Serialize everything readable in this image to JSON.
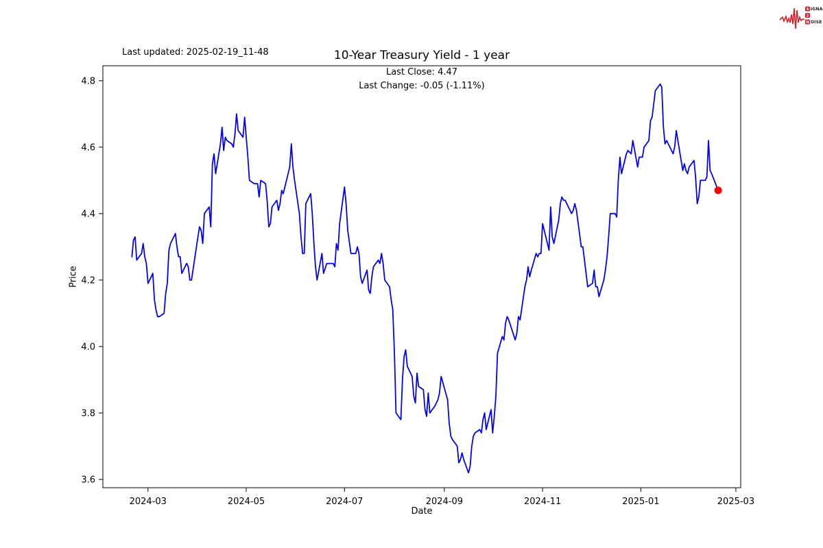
{
  "header": {
    "last_updated": "Last updated: 2025-02-19_11-48",
    "title": "10-Year Treasury Yield - 1 year",
    "subtitle_line1": "Last Close: 4.47",
    "subtitle_line2": "Last Change: -0.05 (-1.11%)"
  },
  "logo": {
    "name": "Signal 2 Noise",
    "color": "#d62027",
    "rows": [
      {
        "badge": "S",
        "rest": "IGNAL"
      },
      {
        "badge": "2",
        "rest": ""
      },
      {
        "badge": "N",
        "rest": "OISE"
      }
    ]
  },
  "chart_data": {
    "type": "line",
    "title": "10-Year Treasury Yield - 1 year",
    "xlabel": "Date",
    "ylabel": "Price",
    "grid": false,
    "legend": "none",
    "line_color": "#0000ff",
    "marker_color": "#ff0000",
    "last_close": 4.47,
    "last_change": -0.05,
    "last_change_pct": "-1.11%",
    "x_domain": [
      "2024-02-02",
      "2025-03-04"
    ],
    "y_domain": [
      3.575,
      4.845
    ],
    "x_ticks": [
      {
        "label": "2024-03",
        "date": "2024-03-01"
      },
      {
        "label": "2024-05",
        "date": "2024-05-01"
      },
      {
        "label": "2024-07",
        "date": "2024-07-01"
      },
      {
        "label": "2024-09",
        "date": "2024-09-01"
      },
      {
        "label": "2024-11",
        "date": "2024-11-01"
      },
      {
        "label": "2025-01",
        "date": "2025-01-01"
      },
      {
        "label": "2025-03",
        "date": "2025-03-01"
      }
    ],
    "y_ticks": [
      {
        "label": "4.8",
        "value": 4.8
      },
      {
        "label": "4.6",
        "value": 4.6
      },
      {
        "label": "4.4",
        "value": 4.4
      },
      {
        "label": "4.2",
        "value": 4.2
      },
      {
        "label": "4.0",
        "value": 4.0
      },
      {
        "label": "3.8",
        "value": 3.8
      },
      {
        "label": "3.6",
        "value": 3.6
      }
    ],
    "series": [
      {
        "name": "10-Year Treasury Yield",
        "points": [
          [
            "2024-02-20",
            4.27
          ],
          [
            "2024-02-21",
            4.32
          ],
          [
            "2024-02-22",
            4.33
          ],
          [
            "2024-02-23",
            4.26
          ],
          [
            "2024-02-26",
            4.28
          ],
          [
            "2024-02-27",
            4.31
          ],
          [
            "2024-02-28",
            4.27
          ],
          [
            "2024-02-29",
            4.25
          ],
          [
            "2024-03-01",
            4.19
          ],
          [
            "2024-03-04",
            4.22
          ],
          [
            "2024-03-05",
            4.14
          ],
          [
            "2024-03-06",
            4.11
          ],
          [
            "2024-03-07",
            4.09
          ],
          [
            "2024-03-08",
            4.09
          ],
          [
            "2024-03-11",
            4.1
          ],
          [
            "2024-03-12",
            4.16
          ],
          [
            "2024-03-13",
            4.19
          ],
          [
            "2024-03-14",
            4.29
          ],
          [
            "2024-03-15",
            4.31
          ],
          [
            "2024-03-18",
            4.34
          ],
          [
            "2024-03-19",
            4.3
          ],
          [
            "2024-03-20",
            4.27
          ],
          [
            "2024-03-21",
            4.27
          ],
          [
            "2024-03-22",
            4.22
          ],
          [
            "2024-03-25",
            4.25
          ],
          [
            "2024-03-26",
            4.24
          ],
          [
            "2024-03-27",
            4.2
          ],
          [
            "2024-03-28",
            4.2
          ],
          [
            "2024-04-01",
            4.33
          ],
          [
            "2024-04-02",
            4.36
          ],
          [
            "2024-04-03",
            4.35
          ],
          [
            "2024-04-04",
            4.31
          ],
          [
            "2024-04-05",
            4.4
          ],
          [
            "2024-04-08",
            4.42
          ],
          [
            "2024-04-09",
            4.36
          ],
          [
            "2024-04-10",
            4.55
          ],
          [
            "2024-04-11",
            4.58
          ],
          [
            "2024-04-12",
            4.52
          ],
          [
            "2024-04-15",
            4.61
          ],
          [
            "2024-04-16",
            4.66
          ],
          [
            "2024-04-17",
            4.59
          ],
          [
            "2024-04-18",
            4.63
          ],
          [
            "2024-04-19",
            4.62
          ],
          [
            "2024-04-22",
            4.61
          ],
          [
            "2024-04-23",
            4.6
          ],
          [
            "2024-04-24",
            4.64
          ],
          [
            "2024-04-25",
            4.7
          ],
          [
            "2024-04-26",
            4.65
          ],
          [
            "2024-04-29",
            4.63
          ],
          [
            "2024-04-30",
            4.69
          ],
          [
            "2024-05-01",
            4.63
          ],
          [
            "2024-05-02",
            4.57
          ],
          [
            "2024-05-03",
            4.5
          ],
          [
            "2024-05-06",
            4.49
          ],
          [
            "2024-05-07",
            4.49
          ],
          [
            "2024-05-08",
            4.49
          ],
          [
            "2024-05-09",
            4.45
          ],
          [
            "2024-05-10",
            4.5
          ],
          [
            "2024-05-13",
            4.49
          ],
          [
            "2024-05-14",
            4.44
          ],
          [
            "2024-05-15",
            4.36
          ],
          [
            "2024-05-16",
            4.37
          ],
          [
            "2024-05-17",
            4.42
          ],
          [
            "2024-05-20",
            4.44
          ],
          [
            "2024-05-21",
            4.41
          ],
          [
            "2024-05-22",
            4.43
          ],
          [
            "2024-05-23",
            4.47
          ],
          [
            "2024-05-24",
            4.46
          ],
          [
            "2024-05-28",
            4.54
          ],
          [
            "2024-05-29",
            4.61
          ],
          [
            "2024-05-30",
            4.54
          ],
          [
            "2024-05-31",
            4.5
          ],
          [
            "2024-06-03",
            4.4
          ],
          [
            "2024-06-04",
            4.33
          ],
          [
            "2024-06-05",
            4.28
          ],
          [
            "2024-06-06",
            4.28
          ],
          [
            "2024-06-07",
            4.43
          ],
          [
            "2024-06-10",
            4.46
          ],
          [
            "2024-06-11",
            4.4
          ],
          [
            "2024-06-12",
            4.31
          ],
          [
            "2024-06-13",
            4.24
          ],
          [
            "2024-06-14",
            4.2
          ],
          [
            "2024-06-17",
            4.28
          ],
          [
            "2024-06-18",
            4.22
          ],
          [
            "2024-06-20",
            4.25
          ],
          [
            "2024-06-21",
            4.25
          ],
          [
            "2024-06-24",
            4.25
          ],
          [
            "2024-06-25",
            4.24
          ],
          [
            "2024-06-26",
            4.31
          ],
          [
            "2024-06-27",
            4.29
          ],
          [
            "2024-06-28",
            4.37
          ],
          [
            "2024-07-01",
            4.48
          ],
          [
            "2024-07-02",
            4.43
          ],
          [
            "2024-07-03",
            4.35
          ],
          [
            "2024-07-05",
            4.28
          ],
          [
            "2024-07-08",
            4.28
          ],
          [
            "2024-07-09",
            4.3
          ],
          [
            "2024-07-10",
            4.28
          ],
          [
            "2024-07-11",
            4.21
          ],
          [
            "2024-07-12",
            4.19
          ],
          [
            "2024-07-15",
            4.23
          ],
          [
            "2024-07-16",
            4.17
          ],
          [
            "2024-07-17",
            4.16
          ],
          [
            "2024-07-18",
            4.21
          ],
          [
            "2024-07-19",
            4.24
          ],
          [
            "2024-07-22",
            4.26
          ],
          [
            "2024-07-23",
            4.25
          ],
          [
            "2024-07-24",
            4.28
          ],
          [
            "2024-07-25",
            4.25
          ],
          [
            "2024-07-26",
            4.2
          ],
          [
            "2024-07-29",
            4.18
          ],
          [
            "2024-07-30",
            4.14
          ],
          [
            "2024-07-31",
            4.11
          ],
          [
            "2024-08-01",
            3.98
          ],
          [
            "2024-08-02",
            3.8
          ],
          [
            "2024-08-05",
            3.78
          ],
          [
            "2024-08-06",
            3.9
          ],
          [
            "2024-08-07",
            3.97
          ],
          [
            "2024-08-08",
            3.99
          ],
          [
            "2024-08-09",
            3.94
          ],
          [
            "2024-08-12",
            3.91
          ],
          [
            "2024-08-13",
            3.85
          ],
          [
            "2024-08-14",
            3.83
          ],
          [
            "2024-08-15",
            3.92
          ],
          [
            "2024-08-16",
            3.88
          ],
          [
            "2024-08-19",
            3.87
          ],
          [
            "2024-08-20",
            3.81
          ],
          [
            "2024-08-21",
            3.79
          ],
          [
            "2024-08-22",
            3.86
          ],
          [
            "2024-08-23",
            3.8
          ],
          [
            "2024-08-26",
            3.82
          ],
          [
            "2024-08-27",
            3.83
          ],
          [
            "2024-08-28",
            3.84
          ],
          [
            "2024-08-29",
            3.86
          ],
          [
            "2024-08-30",
            3.91
          ],
          [
            "2024-09-03",
            3.84
          ],
          [
            "2024-09-04",
            3.77
          ],
          [
            "2024-09-05",
            3.73
          ],
          [
            "2024-09-06",
            3.72
          ],
          [
            "2024-09-09",
            3.7
          ],
          [
            "2024-09-10",
            3.65
          ],
          [
            "2024-09-11",
            3.66
          ],
          [
            "2024-09-12",
            3.68
          ],
          [
            "2024-09-13",
            3.66
          ],
          [
            "2024-09-16",
            3.62
          ],
          [
            "2024-09-17",
            3.64
          ],
          [
            "2024-09-18",
            3.7
          ],
          [
            "2024-09-19",
            3.73
          ],
          [
            "2024-09-20",
            3.74
          ],
          [
            "2024-09-23",
            3.75
          ],
          [
            "2024-09-24",
            3.74
          ],
          [
            "2024-09-25",
            3.78
          ],
          [
            "2024-09-26",
            3.8
          ],
          [
            "2024-09-27",
            3.75
          ],
          [
            "2024-09-30",
            3.81
          ],
          [
            "2024-10-01",
            3.74
          ],
          [
            "2024-10-02",
            3.79
          ],
          [
            "2024-10-03",
            3.85
          ],
          [
            "2024-10-04",
            3.98
          ],
          [
            "2024-10-07",
            4.03
          ],
          [
            "2024-10-08",
            4.02
          ],
          [
            "2024-10-09",
            4.07
          ],
          [
            "2024-10-10",
            4.09
          ],
          [
            "2024-10-11",
            4.08
          ],
          [
            "2024-10-15",
            4.02
          ],
          [
            "2024-10-16",
            4.04
          ],
          [
            "2024-10-17",
            4.09
          ],
          [
            "2024-10-18",
            4.08
          ],
          [
            "2024-10-21",
            4.18
          ],
          [
            "2024-10-22",
            4.2
          ],
          [
            "2024-10-23",
            4.24
          ],
          [
            "2024-10-24",
            4.21
          ],
          [
            "2024-10-25",
            4.23
          ],
          [
            "2024-10-28",
            4.28
          ],
          [
            "2024-10-29",
            4.27
          ],
          [
            "2024-10-30",
            4.28
          ],
          [
            "2024-10-31",
            4.28
          ],
          [
            "2024-11-01",
            4.37
          ],
          [
            "2024-11-04",
            4.31
          ],
          [
            "2024-11-05",
            4.29
          ],
          [
            "2024-11-06",
            4.42
          ],
          [
            "2024-11-07",
            4.33
          ],
          [
            "2024-11-08",
            4.31
          ],
          [
            "2024-11-11",
            4.38
          ],
          [
            "2024-11-12",
            4.43
          ],
          [
            "2024-11-13",
            4.45
          ],
          [
            "2024-11-14",
            4.44
          ],
          [
            "2024-11-15",
            4.44
          ],
          [
            "2024-11-18",
            4.41
          ],
          [
            "2024-11-19",
            4.4
          ],
          [
            "2024-11-20",
            4.41
          ],
          [
            "2024-11-21",
            4.43
          ],
          [
            "2024-11-22",
            4.41
          ],
          [
            "2024-11-25",
            4.3
          ],
          [
            "2024-11-26",
            4.3
          ],
          [
            "2024-11-27",
            4.26
          ],
          [
            "2024-11-29",
            4.18
          ],
          [
            "2024-12-02",
            4.19
          ],
          [
            "2024-12-03",
            4.23
          ],
          [
            "2024-12-04",
            4.18
          ],
          [
            "2024-12-05",
            4.18
          ],
          [
            "2024-12-06",
            4.15
          ],
          [
            "2024-12-09",
            4.2
          ],
          [
            "2024-12-10",
            4.23
          ],
          [
            "2024-12-11",
            4.27
          ],
          [
            "2024-12-12",
            4.33
          ],
          [
            "2024-12-13",
            4.4
          ],
          [
            "2024-12-16",
            4.4
          ],
          [
            "2024-12-17",
            4.39
          ],
          [
            "2024-12-18",
            4.5
          ],
          [
            "2024-12-19",
            4.57
          ],
          [
            "2024-12-20",
            4.52
          ],
          [
            "2024-12-23",
            4.58
          ],
          [
            "2024-12-24",
            4.59
          ],
          [
            "2024-12-26",
            4.58
          ],
          [
            "2024-12-27",
            4.62
          ],
          [
            "2024-12-30",
            4.54
          ],
          [
            "2024-12-31",
            4.57
          ],
          [
            "2025-01-02",
            4.57
          ],
          [
            "2025-01-03",
            4.6
          ],
          [
            "2025-01-06",
            4.62
          ],
          [
            "2025-01-07",
            4.68
          ],
          [
            "2025-01-08",
            4.69
          ],
          [
            "2025-01-10",
            4.77
          ],
          [
            "2025-01-13",
            4.79
          ],
          [
            "2025-01-14",
            4.78
          ],
          [
            "2025-01-15",
            4.66
          ],
          [
            "2025-01-16",
            4.61
          ],
          [
            "2025-01-17",
            4.62
          ],
          [
            "2025-01-21",
            4.58
          ],
          [
            "2025-01-22",
            4.6
          ],
          [
            "2025-01-23",
            4.65
          ],
          [
            "2025-01-24",
            4.62
          ],
          [
            "2025-01-27",
            4.53
          ],
          [
            "2025-01-28",
            4.55
          ],
          [
            "2025-01-29",
            4.53
          ],
          [
            "2025-01-30",
            4.52
          ],
          [
            "2025-01-31",
            4.54
          ],
          [
            "2025-02-03",
            4.56
          ],
          [
            "2025-02-04",
            4.51
          ],
          [
            "2025-02-05",
            4.43
          ],
          [
            "2025-02-06",
            4.45
          ],
          [
            "2025-02-07",
            4.5
          ],
          [
            "2025-02-10",
            4.5
          ],
          [
            "2025-02-11",
            4.51
          ],
          [
            "2025-02-12",
            4.62
          ],
          [
            "2025-02-13",
            4.53
          ],
          [
            "2025-02-14",
            4.52
          ],
          [
            "2025-02-18",
            4.47
          ]
        ]
      }
    ]
  }
}
